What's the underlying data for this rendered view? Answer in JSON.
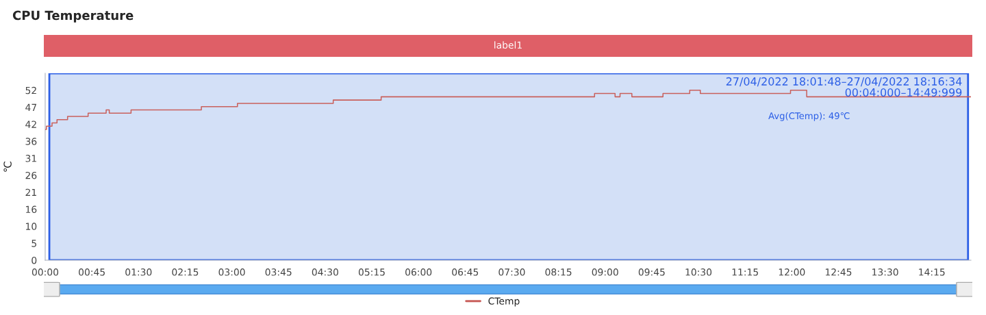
{
  "chart_data": {
    "type": "step",
    "title": "CPU Temperature",
    "ylabel": "℃",
    "x": [
      0,
      0.02,
      0.11,
      0.19,
      0.36,
      0.69,
      0.98,
      1.03,
      1.38,
      2.51,
      3.09,
      4.63,
      5.4,
      8.83,
      9.16,
      9.24,
      9.43,
      9.93,
      10.36,
      10.53,
      11.98,
      12.24,
      14.88
    ],
    "series": [
      {
        "name": "CTemp",
        "color": "#c9605c",
        "values": [
          40,
          41,
          42,
          43,
          44,
          45,
          46,
          45,
          46,
          47,
          48,
          49,
          50,
          51,
          50,
          51,
          50,
          51,
          52,
          51,
          52,
          50,
          50
        ]
      }
    ],
    "xlim": [
      0,
      14.88
    ],
    "xticks": [
      {
        "value": 0,
        "label": "00:00"
      },
      {
        "value": 0.75,
        "label": "00:45"
      },
      {
        "value": 1.5,
        "label": "01:30"
      },
      {
        "value": 2.25,
        "label": "02:15"
      },
      {
        "value": 3,
        "label": "03:00"
      },
      {
        "value": 3.75,
        "label": "03:45"
      },
      {
        "value": 4.5,
        "label": "04:30"
      },
      {
        "value": 5.25,
        "label": "05:15"
      },
      {
        "value": 6,
        "label": "06:00"
      },
      {
        "value": 6.75,
        "label": "06:45"
      },
      {
        "value": 7.5,
        "label": "07:30"
      },
      {
        "value": 8.25,
        "label": "08:15"
      },
      {
        "value": 9,
        "label": "09:00"
      },
      {
        "value": 9.75,
        "label": "09:45"
      },
      {
        "value": 10.5,
        "label": "10:30"
      },
      {
        "value": 11.25,
        "label": "11:15"
      },
      {
        "value": 12,
        "label": "12:00"
      },
      {
        "value": 12.75,
        "label": "12:45"
      },
      {
        "value": 13.5,
        "label": "13:30"
      },
      {
        "value": 14.25,
        "label": "14:15"
      }
    ],
    "ylim": [
      0,
      57.2
    ],
    "yticks": [
      0,
      {
        "value": 5.2,
        "label": "5"
      },
      {
        "value": 10.4,
        "label": "10"
      },
      {
        "value": 15.6,
        "label": "16"
      },
      {
        "value": 20.8,
        "label": "21"
      },
      26,
      {
        "value": 31.2,
        "label": "31"
      },
      {
        "value": 36.4,
        "label": "36"
      },
      {
        "value": 41.6,
        "label": "42"
      },
      {
        "value": 46.8,
        "label": "47"
      },
      52
    ],
    "bands": [
      {
        "axis": "x",
        "from": 0.0667,
        "to": 14.8333,
        "label": "27/04/2022 18:01:48–27/04/2022 18:16:34\n00:04:000–14:49:999",
        "color": "#d3e0f7"
      }
    ],
    "annotations": [
      "label1",
      "Avg(CTemp): 49℃"
    ],
    "legend": "bottom",
    "grid": false,
    "marker": "none",
    "line_style": "solid"
  }
}
